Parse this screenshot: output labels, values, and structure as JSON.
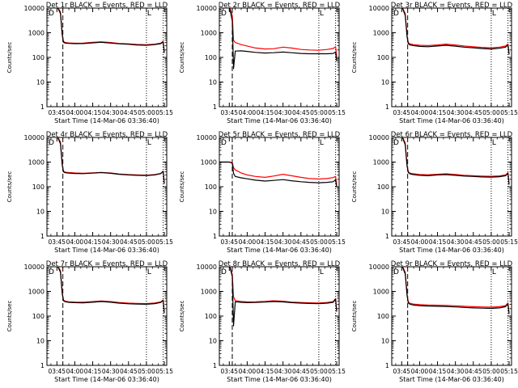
{
  "figure": {
    "layout": "3x3 grid of detector count-rate plots"
  },
  "colors": {
    "background": "#ffffff",
    "axes": "#000000",
    "events": "#000000",
    "lld": "#ff0000"
  },
  "chart_data": [
    {
      "type": "line",
      "title": "Det 1r BLACK = Events, RED = LLD",
      "xlabel": "Start Time (14-Mar-06 03:36:40)",
      "ylabel": "Counts/sec",
      "y_scale": "log",
      "ylim": [
        1,
        10000
      ],
      "y_ticks": [
        "1",
        "10",
        "100",
        "1000",
        "10000"
      ],
      "xlim": [
        "03:36:40",
        "05:17:00"
      ],
      "x_ticks": [
        "03:45",
        "04:00",
        "04:15",
        "04:30",
        "04:45",
        "05:00",
        "05:15"
      ],
      "markers": {
        "dashed": "03:50:00",
        "dotted_1": "05:00:00",
        "dotted_2": "05:14:00"
      },
      "corner_marks": {
        "left": "D",
        "right": "L"
      },
      "x": [
        "03:36:40",
        "03:45:00",
        "03:48:00",
        "03:49:30",
        "03:50:30",
        "03:52:00",
        "03:55:00",
        "04:00:00",
        "04:07:00",
        "04:15:00",
        "04:22:00",
        "04:30:00",
        "04:37:00",
        "04:45:00",
        "04:52:00",
        "05:00:00",
        "05:07:00",
        "05:12:00",
        "05:14:00",
        "05:15:00"
      ],
      "series": [
        {
          "name": "Events",
          "color": "#000000",
          "values": [
            12000,
            12000,
            6000,
            800,
            410,
            380,
            370,
            360,
            365,
            390,
            410,
            380,
            355,
            340,
            320,
            310,
            330,
            360,
            420,
            150
          ]
        },
        {
          "name": "LLD",
          "color": "#ff0000",
          "values": [
            12000,
            12000,
            7000,
            900,
            450,
            400,
            385,
            375,
            380,
            410,
            430,
            400,
            370,
            355,
            335,
            325,
            345,
            380,
            450,
            160
          ]
        }
      ]
    },
    {
      "type": "line",
      "title": "Det 2r BLACK = Events, RED = LLD",
      "xlabel": "Start Time (14-Mar-06 03:36:40)",
      "ylabel": "Counts/sec",
      "y_scale": "log",
      "ylim": [
        1,
        10000
      ],
      "y_ticks": [
        "1",
        "10",
        "100",
        "1000",
        "10000"
      ],
      "xlim": [
        "03:36:40",
        "05:17:00"
      ],
      "x_ticks": [
        "03:45",
        "04:00",
        "04:15",
        "04:30",
        "04:45",
        "05:00",
        "05:15"
      ],
      "markers": {
        "dashed": "03:47:30",
        "dotted_1": "05:00:00",
        "dotted_2": "05:14:00"
      },
      "corner_marks": {
        "left": "D",
        "right": "L"
      },
      "x": [
        "03:36:40",
        "03:45:00",
        "03:47:30",
        "03:48:30",
        "03:50:00",
        "03:55:00",
        "04:00:00",
        "04:07:00",
        "04:15:00",
        "04:22:00",
        "04:30:00",
        "04:37:00",
        "04:45:00",
        "04:52:00",
        "05:00:00",
        "05:07:00",
        "05:12:00",
        "05:14:00",
        "05:15:00"
      ],
      "series": [
        {
          "name": "Events",
          "color": "#000000",
          "values": [
            12000,
            12000,
            3000,
            35,
            180,
            185,
            175,
            160,
            150,
            155,
            165,
            155,
            145,
            140,
            140,
            140,
            145,
            165,
            70
          ]
        },
        {
          "name": "LLD",
          "color": "#ff0000",
          "values": [
            12000,
            12000,
            5000,
            500,
            400,
            330,
            290,
            240,
            220,
            225,
            260,
            240,
            210,
            200,
            195,
            210,
            230,
            270,
            110
          ]
        }
      ]
    },
    {
      "type": "line",
      "title": "Det 3r BLACK = Events, RED = LLD",
      "xlabel": "Start Time (14-Mar-06 03:36:40)",
      "ylabel": "Counts/sec",
      "y_scale": "log",
      "ylim": [
        1,
        10000
      ],
      "y_ticks": [
        "1",
        "10",
        "100",
        "1000",
        "10000"
      ],
      "xlim": [
        "03:36:40",
        "05:17:00"
      ],
      "x_ticks": [
        "03:45",
        "04:00",
        "04:15",
        "04:30",
        "04:45",
        "05:00",
        "05:15"
      ],
      "markers": {
        "dashed": "03:50:00",
        "dotted_1": "05:00:00",
        "dotted_2": "05:14:00"
      },
      "corner_marks": {
        "left": "D",
        "right": "L"
      },
      "x": [
        "03:36:40",
        "03:45:00",
        "03:48:00",
        "03:49:30",
        "03:50:30",
        "03:52:00",
        "03:55:00",
        "04:00:00",
        "04:07:00",
        "04:15:00",
        "04:22:00",
        "04:30:00",
        "04:37:00",
        "04:45:00",
        "04:52:00",
        "05:00:00",
        "05:07:00",
        "05:12:00",
        "05:14:00",
        "05:15:00"
      ],
      "series": [
        {
          "name": "Events",
          "color": "#000000",
          "values": [
            12000,
            12000,
            5000,
            700,
            360,
            320,
            300,
            280,
            270,
            290,
            310,
            285,
            260,
            245,
            230,
            220,
            235,
            260,
            320,
            130
          ]
        },
        {
          "name": "LLD",
          "color": "#ff0000",
          "values": [
            12000,
            12000,
            6000,
            800,
            400,
            350,
            330,
            310,
            300,
            320,
            345,
            320,
            290,
            270,
            255,
            245,
            260,
            290,
            350,
            140
          ]
        }
      ]
    },
    {
      "type": "line",
      "title": "Det 4r BLACK = Events, RED = LLD",
      "xlabel": "Start Time (14-Mar-06 03:36:40)",
      "ylabel": "Counts/sec",
      "y_scale": "log",
      "ylim": [
        1,
        10000
      ],
      "y_ticks": [
        "1",
        "10",
        "100",
        "1000",
        "10000"
      ],
      "xlim": [
        "03:36:40",
        "05:17:00"
      ],
      "x_ticks": [
        "03:45",
        "04:00",
        "04:15",
        "04:30",
        "04:45",
        "05:00",
        "05:15"
      ],
      "markers": {
        "dashed": "03:50:00",
        "dotted_1": "05:00:00",
        "dotted_2": "05:14:00"
      },
      "corner_marks": {
        "left": "D",
        "right": "L"
      },
      "x": [
        "03:36:40",
        "03:45:00",
        "03:48:00",
        "03:49:30",
        "03:50:30",
        "03:52:00",
        "03:55:00",
        "04:00:00",
        "04:07:00",
        "04:15:00",
        "04:22:00",
        "04:30:00",
        "04:37:00",
        "04:45:00",
        "04:52:00",
        "05:00:00",
        "05:07:00",
        "05:12:00",
        "05:14:00",
        "05:15:00"
      ],
      "series": [
        {
          "name": "Events",
          "color": "#000000",
          "values": [
            12000,
            12000,
            5500,
            750,
            400,
            370,
            355,
            345,
            340,
            355,
            375,
            350,
            320,
            300,
            290,
            285,
            300,
            340,
            420,
            130
          ]
        },
        {
          "name": "LLD",
          "color": "#ff0000",
          "values": [
            12000,
            12000,
            6500,
            850,
            430,
            390,
            375,
            360,
            350,
            365,
            380,
            360,
            330,
            310,
            300,
            295,
            310,
            350,
            430,
            140
          ]
        }
      ]
    },
    {
      "type": "line",
      "title": "Det 5r BLACK = Events, RED = LLD",
      "xlabel": "Start Time (14-Mar-06 03:36:40)",
      "ylabel": "Counts/sec",
      "y_scale": "log",
      "ylim": [
        1,
        10000
      ],
      "y_ticks": [
        "1",
        "10",
        "100",
        "1000",
        "10000"
      ],
      "xlim": [
        "03:36:40",
        "05:17:00"
      ],
      "x_ticks": [
        "03:45",
        "04:00",
        "04:15",
        "04:30",
        "04:45",
        "05:00",
        "05:15"
      ],
      "markers": {
        "dashed": "03:47:30",
        "dotted_1": "05:00:00",
        "dotted_2": "05:14:00"
      },
      "corner_marks": {
        "left": "D",
        "right": "L"
      },
      "x": [
        "03:36:40",
        "03:45:00",
        "03:47:30",
        "03:48:30",
        "03:50:00",
        "03:55:00",
        "04:00:00",
        "04:07:00",
        "04:15:00",
        "04:22:00",
        "04:30:00",
        "04:37:00",
        "04:45:00",
        "04:52:00",
        "05:00:00",
        "05:07:00",
        "05:12:00",
        "05:14:00",
        "05:15:00"
      ],
      "series": [
        {
          "name": "Events",
          "color": "#000000",
          "values": [
            1000,
            1000,
            900,
            350,
            260,
            230,
            210,
            185,
            170,
            180,
            195,
            175,
            160,
            150,
            145,
            150,
            160,
            190,
            100
          ]
        },
        {
          "name": "LLD",
          "color": "#ff0000",
          "values": [
            1000,
            1000,
            950,
            600,
            480,
            360,
            300,
            260,
            240,
            270,
            320,
            280,
            240,
            215,
            205,
            215,
            235,
            260,
            120
          ]
        }
      ]
    },
    {
      "type": "line",
      "title": "Det 6r BLACK = Events, RED = LLD",
      "xlabel": "Start Time (14-Mar-06 03:36:40)",
      "ylabel": "Counts/sec",
      "y_scale": "log",
      "ylim": [
        1,
        10000
      ],
      "y_ticks": [
        "1",
        "10",
        "100",
        "1000",
        "10000"
      ],
      "xlim": [
        "03:36:40",
        "05:17:00"
      ],
      "x_ticks": [
        "03:45",
        "04:00",
        "04:15",
        "04:30",
        "04:45",
        "05:00",
        "05:15"
      ],
      "markers": {
        "dashed": "03:50:00",
        "dotted_1": "05:00:00",
        "dotted_2": "05:14:00"
      },
      "corner_marks": {
        "left": "D",
        "right": "L"
      },
      "x": [
        "03:36:40",
        "03:45:00",
        "03:48:00",
        "03:49:30",
        "03:50:30",
        "03:52:00",
        "03:55:00",
        "04:00:00",
        "04:07:00",
        "04:15:00",
        "04:22:00",
        "04:30:00",
        "04:37:00",
        "04:45:00",
        "04:52:00",
        "05:00:00",
        "05:07:00",
        "05:12:00",
        "05:14:00",
        "05:15:00"
      ],
      "series": [
        {
          "name": "Events",
          "color": "#000000",
          "values": [
            12000,
            12000,
            5000,
            700,
            380,
            330,
            310,
            290,
            280,
            300,
            310,
            290,
            270,
            260,
            250,
            245,
            255,
            280,
            350,
            120
          ]
        },
        {
          "name": "LLD",
          "color": "#ff0000",
          "values": [
            12000,
            12000,
            6000,
            800,
            410,
            355,
            335,
            315,
            305,
            320,
            335,
            315,
            290,
            280,
            270,
            265,
            275,
            300,
            370,
            130
          ]
        }
      ]
    },
    {
      "type": "line",
      "title": "Det 7r BLACK = Events, RED = LLD",
      "xlabel": "Start Time (14-Mar-06 03:36:40)",
      "ylabel": "Counts/sec",
      "y_scale": "log",
      "ylim": [
        1,
        10000
      ],
      "y_ticks": [
        "1",
        "10",
        "100",
        "1000",
        "10000"
      ],
      "xlim": [
        "03:36:40",
        "05:17:00"
      ],
      "x_ticks": [
        "03:45",
        "04:00",
        "04:15",
        "04:30",
        "04:45",
        "05:00",
        "05:15"
      ],
      "markers": {
        "dashed": "03:50:00",
        "dotted_1": "05:00:00",
        "dotted_2": "05:14:00"
      },
      "corner_marks": {
        "left": "D",
        "right": "L"
      },
      "x": [
        "03:36:40",
        "03:45:00",
        "03:48:00",
        "03:49:30",
        "03:50:30",
        "03:52:00",
        "03:55:00",
        "04:00:00",
        "04:07:00",
        "04:15:00",
        "04:22:00",
        "04:30:00",
        "04:37:00",
        "04:45:00",
        "04:52:00",
        "05:00:00",
        "05:07:00",
        "05:12:00",
        "05:14:00",
        "05:15:00"
      ],
      "series": [
        {
          "name": "Events",
          "color": "#000000",
          "values": [
            12000,
            12000,
            6000,
            800,
            420,
            380,
            360,
            350,
            345,
            365,
            390,
            365,
            335,
            315,
            305,
            300,
            320,
            355,
            430,
            130
          ]
        },
        {
          "name": "LLD",
          "color": "#ff0000",
          "values": [
            12000,
            12000,
            7000,
            900,
            450,
            400,
            380,
            370,
            365,
            385,
            410,
            385,
            355,
            335,
            325,
            320,
            340,
            375,
            450,
            140
          ]
        }
      ]
    },
    {
      "type": "line",
      "title": "Det 8r BLACK = Events, RED = LLD",
      "xlabel": "Start Time (14-Mar-06 03:36:40)",
      "ylabel": "Counts/sec",
      "y_scale": "log",
      "ylim": [
        1,
        10000
      ],
      "y_ticks": [
        "1",
        "10",
        "100",
        "1000",
        "10000"
      ],
      "xlim": [
        "03:36:40",
        "05:17:00"
      ],
      "x_ticks": [
        "03:45",
        "04:00",
        "04:15",
        "04:30",
        "04:45",
        "05:00",
        "05:15"
      ],
      "markers": {
        "dashed": "03:47:30",
        "dotted_1": "05:00:00",
        "dotted_2": "05:14:00"
      },
      "corner_marks": {
        "left": "D",
        "right": "L"
      },
      "x": [
        "03:36:40",
        "03:45:00",
        "03:47:30",
        "03:48:30",
        "03:50:00",
        "03:55:00",
        "04:00:00",
        "04:07:00",
        "04:15:00",
        "04:22:00",
        "04:30:00",
        "04:37:00",
        "04:45:00",
        "04:52:00",
        "05:00:00",
        "05:07:00",
        "05:12:00",
        "05:14:00",
        "05:15:00"
      ],
      "series": [
        {
          "name": "Events",
          "color": "#000000",
          "values": [
            12000,
            12000,
            4000,
            40,
            380,
            360,
            350,
            355,
            370,
            390,
            375,
            350,
            335,
            325,
            320,
            335,
            360,
            480,
            150
          ]
        },
        {
          "name": "LLD",
          "color": "#ff0000",
          "values": [
            12000,
            12000,
            5000,
            600,
            420,
            390,
            375,
            380,
            395,
            415,
            400,
            370,
            355,
            345,
            340,
            355,
            385,
            520,
            160
          ]
        }
      ]
    },
    {
      "type": "line",
      "title": "Det 9r BLACK = Events, RED = LLD",
      "xlabel": "Start Time (14-Mar-06 03:36:40)",
      "ylabel": "Counts/sec",
      "y_scale": "log",
      "ylim": [
        1,
        10000
      ],
      "y_ticks": [
        "1",
        "10",
        "100",
        "1000",
        "10000"
      ],
      "xlim": [
        "03:36:40",
        "05:17:00"
      ],
      "x_ticks": [
        "03:45",
        "04:00",
        "04:15",
        "04:30",
        "04:45",
        "05:00",
        "05:15"
      ],
      "markers": {
        "dashed": "03:50:00",
        "dotted_1": "05:00:00",
        "dotted_2": "05:14:00"
      },
      "corner_marks": {
        "left": "D",
        "right": "L"
      },
      "x": [
        "03:36:40",
        "03:45:00",
        "03:48:00",
        "03:49:30",
        "03:50:30",
        "03:52:00",
        "03:55:00",
        "04:00:00",
        "04:07:00",
        "04:15:00",
        "04:22:00",
        "04:30:00",
        "04:37:00",
        "04:45:00",
        "04:52:00",
        "05:00:00",
        "05:07:00",
        "05:12:00",
        "05:14:00",
        "05:15:00"
      ],
      "series": [
        {
          "name": "Events",
          "color": "#000000",
          "values": [
            12000,
            12000,
            5000,
            700,
            340,
            300,
            280,
            265,
            255,
            250,
            245,
            235,
            225,
            215,
            210,
            205,
            215,
            240,
            310,
            120
          ]
        },
        {
          "name": "LLD",
          "color": "#ff0000",
          "values": [
            12000,
            12000,
            6000,
            800,
            380,
            330,
            305,
            290,
            280,
            275,
            270,
            260,
            250,
            240,
            235,
            230,
            240,
            265,
            340,
            130
          ]
        }
      ]
    }
  ]
}
